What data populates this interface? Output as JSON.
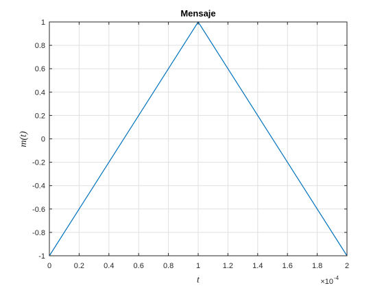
{
  "chart_data": {
    "type": "line",
    "title": "Mensaje",
    "xlabel": "t",
    "ylabel": "m(t)",
    "x_exponent_label": {
      "base": "×10",
      "exponent": "-4"
    },
    "x_scale_factor": 0.0001,
    "xlim": [
      0,
      2
    ],
    "ylim": [
      -1,
      1
    ],
    "xticks": [
      "0",
      "0.2",
      "0.4",
      "0.6",
      "0.8",
      "1",
      "1.2",
      "1.4",
      "1.6",
      "1.8",
      "2"
    ],
    "yticks": [
      "-1",
      "-0.8",
      "-0.6",
      "-0.4",
      "-0.2",
      "0",
      "0.2",
      "0.4",
      "0.6",
      "0.8",
      "1"
    ],
    "grid": true,
    "series": [
      {
        "x": [
          0,
          1,
          2
        ],
        "y": [
          -1,
          1,
          -1
        ],
        "color": "#0072BD"
      }
    ]
  }
}
